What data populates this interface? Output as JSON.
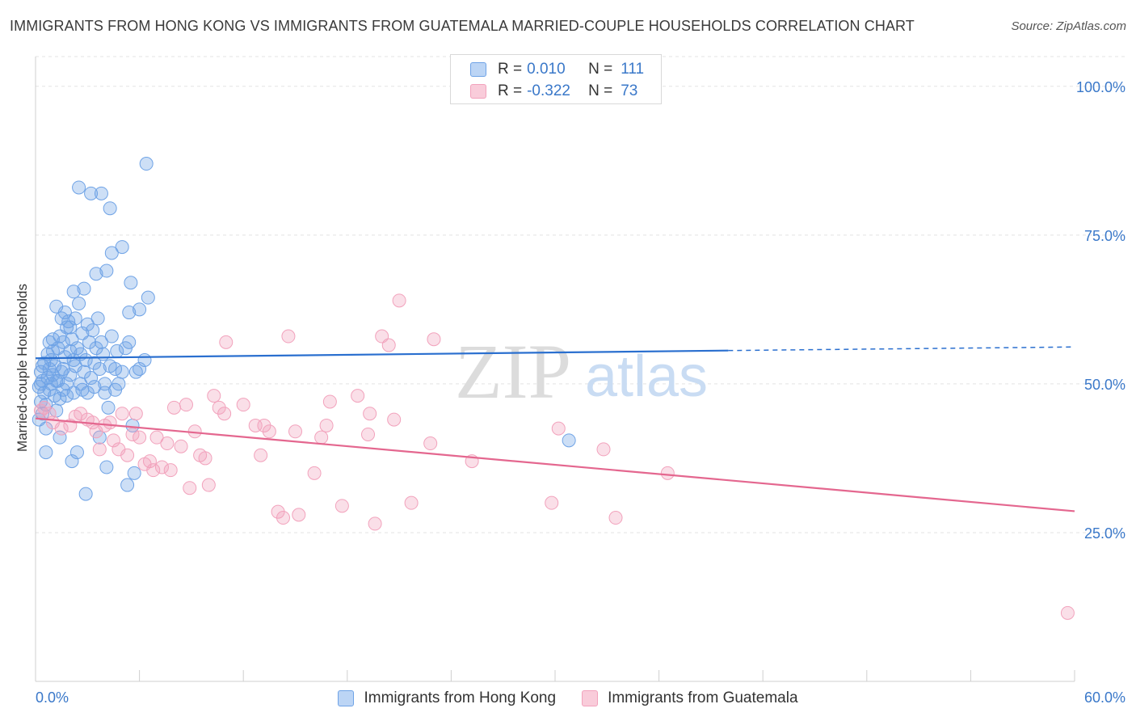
{
  "title": "IMMIGRANTS FROM HONG KONG VS IMMIGRANTS FROM GUATEMALA MARRIED-COUPLE HOUSEHOLDS CORRELATION CHART",
  "source": "Source: ZipAtlas.com",
  "watermark": {
    "zip": "ZIP",
    "atlas": "atlas"
  },
  "legend_top": {
    "rows": [
      {
        "r_label": "R =",
        "r_value": "0.010",
        "n_label": "N =",
        "n_value": "111",
        "color": "#6fa3e6"
      },
      {
        "r_label": "R =",
        "r_value": "-0.322",
        "n_label": "N =",
        "n_value": "73",
        "color": "#f2a2bc"
      }
    ]
  },
  "legend_bottom": [
    {
      "label": "Immigrants from Hong Kong",
      "color": "#6fa3e6"
    },
    {
      "label": "Immigrants from Guatemala",
      "color": "#f2a2bc"
    }
  ],
  "chart_data": {
    "type": "scatter",
    "title": "IMMIGRANTS FROM HONG KONG VS IMMIGRANTS FROM GUATEMALA MARRIED-COUPLE HOUSEHOLDS CORRELATION CHART",
    "xlabel": "",
    "ylabel": "Married-couple Households",
    "xlim": [
      0,
      60
    ],
    "ylim": [
      0,
      105
    ],
    "x_tick_labels": [
      "0.0%",
      "60.0%"
    ],
    "y_tick_labels": [
      "25.0%",
      "50.0%",
      "75.0%",
      "100.0%"
    ],
    "y_ticks": [
      25,
      50,
      75,
      100
    ],
    "grid": true,
    "legend_position": "bottom",
    "series": [
      {
        "name": "Immigrants from Hong Kong",
        "color": "#6fa3e6",
        "line_color": "#2a6fcf",
        "trend": {
          "x": [
            0,
            40
          ],
          "y": [
            54.3,
            55.6
          ],
          "dashed_to": [
            60,
            56.2
          ]
        },
        "points": [
          [
            0.2,
            49.5
          ],
          [
            0.3,
            52.0
          ],
          [
            0.3,
            47.0
          ],
          [
            0.4,
            45.0
          ],
          [
            0.4,
            50.5
          ],
          [
            0.5,
            53.5
          ],
          [
            0.5,
            48.5
          ],
          [
            0.6,
            38.5
          ],
          [
            0.6,
            42.5
          ],
          [
            0.7,
            51.0
          ],
          [
            0.7,
            55.0
          ],
          [
            0.8,
            49.0
          ],
          [
            0.8,
            52.5
          ],
          [
            0.9,
            54.0
          ],
          [
            0.9,
            50.0
          ],
          [
            1.0,
            57.5
          ],
          [
            1.0,
            51.5
          ],
          [
            1.1,
            48.0
          ],
          [
            1.1,
            53.0
          ],
          [
            1.2,
            45.5
          ],
          [
            1.2,
            63.0
          ],
          [
            1.3,
            56.0
          ],
          [
            1.3,
            50.5
          ],
          [
            1.4,
            58.0
          ],
          [
            1.4,
            41.0
          ],
          [
            1.5,
            61.0
          ],
          [
            1.5,
            52.0
          ],
          [
            1.6,
            57.0
          ],
          [
            1.6,
            49.0
          ],
          [
            1.7,
            54.5
          ],
          [
            1.7,
            62.0
          ],
          [
            1.8,
            50.0
          ],
          [
            1.8,
            59.5
          ],
          [
            1.9,
            60.5
          ],
          [
            2.0,
            51.5
          ],
          [
            2.0,
            55.5
          ],
          [
            2.1,
            37.0
          ],
          [
            2.1,
            57.5
          ],
          [
            2.2,
            65.5
          ],
          [
            2.2,
            48.5
          ],
          [
            2.3,
            61.0
          ],
          [
            2.3,
            53.0
          ],
          [
            2.4,
            38.5
          ],
          [
            2.4,
            56.0
          ],
          [
            2.5,
            83.0
          ],
          [
            2.5,
            63.5
          ],
          [
            2.6,
            50.0
          ],
          [
            2.6,
            55.0
          ],
          [
            2.7,
            49.0
          ],
          [
            2.7,
            58.5
          ],
          [
            2.8,
            66.0
          ],
          [
            2.8,
            52.0
          ],
          [
            2.9,
            31.5
          ],
          [
            2.9,
            54.0
          ],
          [
            3.0,
            60.0
          ],
          [
            3.0,
            48.5
          ],
          [
            3.1,
            57.0
          ],
          [
            3.2,
            51.0
          ],
          [
            3.2,
            82.0
          ],
          [
            3.3,
            59.0
          ],
          [
            3.4,
            53.5
          ],
          [
            3.4,
            49.5
          ],
          [
            3.5,
            68.5
          ],
          [
            3.5,
            56.0
          ],
          [
            3.6,
            61.0
          ],
          [
            3.7,
            41.0
          ],
          [
            3.7,
            52.5
          ],
          [
            3.8,
            57.0
          ],
          [
            3.8,
            82.0
          ],
          [
            3.9,
            55.0
          ],
          [
            4.0,
            50.0
          ],
          [
            4.0,
            48.5
          ],
          [
            4.1,
            69.0
          ],
          [
            4.1,
            36.0
          ],
          [
            4.2,
            46.0
          ],
          [
            4.3,
            79.5
          ],
          [
            4.3,
            53.0
          ],
          [
            4.4,
            72.0
          ],
          [
            4.4,
            58.0
          ],
          [
            4.6,
            52.5
          ],
          [
            4.6,
            49.0
          ],
          [
            4.7,
            55.5
          ],
          [
            4.8,
            50.0
          ],
          [
            5.0,
            52.0
          ],
          [
            5.0,
            73.0
          ],
          [
            5.2,
            56.0
          ],
          [
            5.3,
            33.0
          ],
          [
            5.4,
            57.0
          ],
          [
            5.4,
            62.0
          ],
          [
            5.5,
            67.0
          ],
          [
            5.6,
            43.0
          ],
          [
            5.7,
            35.0
          ],
          [
            5.8,
            52.0
          ],
          [
            6.0,
            62.5
          ],
          [
            6.0,
            52.5
          ],
          [
            6.3,
            54.0
          ],
          [
            6.4,
            87.0
          ],
          [
            6.5,
            64.5
          ],
          [
            0.2,
            44.0
          ],
          [
            0.3,
            50.0
          ],
          [
            0.4,
            53.0
          ],
          [
            0.6,
            46.5
          ],
          [
            0.8,
            57.0
          ],
          [
            1.0,
            55.5
          ],
          [
            1.2,
            50.5
          ],
          [
            1.4,
            47.5
          ],
          [
            1.6,
            52.5
          ],
          [
            1.8,
            48.0
          ],
          [
            2.0,
            59.5
          ],
          [
            2.2,
            54.0
          ],
          [
            30.8,
            40.5
          ]
        ]
      },
      {
        "name": "Immigrants from Guatemala",
        "color": "#f2a2bc",
        "line_color": "#e4678f",
        "trend": {
          "x": [
            0,
            60
          ],
          "y": [
            44.2,
            28.6
          ]
        },
        "points": [
          [
            0.3,
            45.5
          ],
          [
            0.5,
            46.0
          ],
          [
            0.8,
            45.0
          ],
          [
            1.0,
            43.5
          ],
          [
            1.5,
            42.5
          ],
          [
            2.0,
            43.0
          ],
          [
            2.3,
            44.5
          ],
          [
            2.6,
            45.0
          ],
          [
            3.0,
            44.0
          ],
          [
            3.3,
            43.5
          ],
          [
            3.5,
            42.0
          ],
          [
            3.7,
            39.0
          ],
          [
            4.0,
            43.0
          ],
          [
            4.3,
            43.5
          ],
          [
            4.5,
            40.5
          ],
          [
            4.8,
            39.0
          ],
          [
            5.0,
            45.0
          ],
          [
            5.3,
            38.0
          ],
          [
            5.6,
            41.5
          ],
          [
            5.8,
            45.0
          ],
          [
            6.0,
            41.0
          ],
          [
            6.3,
            36.5
          ],
          [
            6.6,
            37.0
          ],
          [
            6.8,
            35.5
          ],
          [
            7.0,
            41.0
          ],
          [
            7.3,
            36.0
          ],
          [
            7.6,
            40.0
          ],
          [
            7.8,
            35.5
          ],
          [
            8.0,
            46.0
          ],
          [
            8.4,
            39.5
          ],
          [
            8.7,
            46.5
          ],
          [
            8.9,
            32.5
          ],
          [
            9.2,
            42.0
          ],
          [
            9.5,
            38.0
          ],
          [
            9.8,
            37.5
          ],
          [
            10.0,
            33.0
          ],
          [
            10.3,
            48.0
          ],
          [
            10.6,
            46.0
          ],
          [
            10.9,
            45.0
          ],
          [
            11.0,
            57.0
          ],
          [
            12.0,
            46.5
          ],
          [
            12.7,
            43.0
          ],
          [
            13.0,
            38.0
          ],
          [
            13.2,
            43.0
          ],
          [
            13.5,
            42.0
          ],
          [
            14.0,
            28.5
          ],
          [
            14.3,
            27.5
          ],
          [
            14.6,
            58.0
          ],
          [
            15.0,
            42.0
          ],
          [
            15.2,
            28.0
          ],
          [
            16.1,
            35.0
          ],
          [
            16.5,
            41.0
          ],
          [
            16.8,
            43.0
          ],
          [
            17.0,
            47.0
          ],
          [
            17.7,
            29.5
          ],
          [
            18.6,
            48.0
          ],
          [
            19.2,
            41.5
          ],
          [
            19.3,
            45.0
          ],
          [
            19.6,
            26.5
          ],
          [
            20.0,
            58.0
          ],
          [
            20.4,
            56.5
          ],
          [
            20.7,
            44.0
          ],
          [
            21.0,
            64.0
          ],
          [
            21.7,
            30.0
          ],
          [
            22.8,
            40.0
          ],
          [
            23.0,
            57.5
          ],
          [
            25.2,
            37.0
          ],
          [
            29.8,
            30.0
          ],
          [
            30.2,
            42.5
          ],
          [
            32.8,
            39.0
          ],
          [
            33.5,
            27.5
          ],
          [
            36.5,
            35.0
          ],
          [
            59.6,
            11.5
          ]
        ]
      }
    ]
  }
}
